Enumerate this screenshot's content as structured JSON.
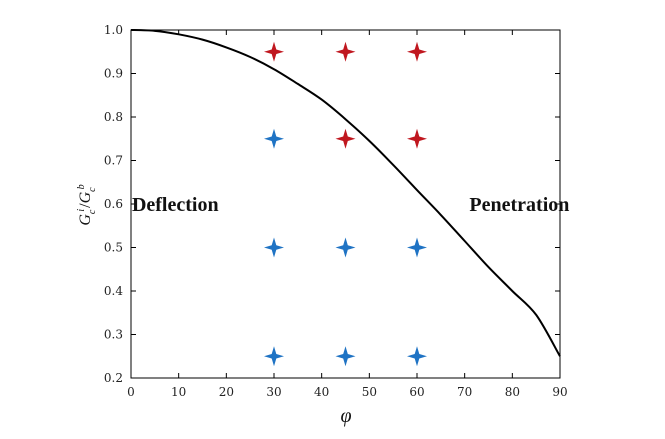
{
  "chart_data": {
    "type": "scatter",
    "title": "",
    "xlabel": "φ",
    "ylabel": {
      "main": "G",
      "sub1": "c",
      "sup1": "i",
      "slash": "/",
      "main2": "G",
      "sub2": "c",
      "sup2": "b"
    },
    "xlim": [
      0,
      90
    ],
    "ylim": [
      0.2,
      1.0
    ],
    "x_ticks": [
      0,
      10,
      20,
      30,
      40,
      50,
      60,
      70,
      80,
      90
    ],
    "y_ticks": [
      "0.2",
      "0.3",
      "0.4",
      "0.5",
      "0.6",
      "0.7",
      "0.8",
      "0.9",
      "1.0"
    ],
    "grid": false,
    "boundary_curve": {
      "name": "deflection-penetration boundary",
      "color": "#000000",
      "x": [
        0,
        5,
        10,
        15,
        20,
        25,
        30,
        35,
        40,
        45,
        50,
        55,
        60,
        65,
        70,
        75,
        80,
        85,
        90
      ],
      "y": [
        1.0,
        0.998,
        0.99,
        0.978,
        0.96,
        0.938,
        0.91,
        0.876,
        0.84,
        0.795,
        0.745,
        0.69,
        0.632,
        0.575,
        0.515,
        0.455,
        0.4,
        0.345,
        0.25
      ]
    },
    "series": [
      {
        "name": "penetration",
        "color": "#c0171f",
        "points": [
          {
            "x": 30,
            "y": 0.95
          },
          {
            "x": 45,
            "y": 0.95
          },
          {
            "x": 60,
            "y": 0.95
          },
          {
            "x": 45,
            "y": 0.75
          },
          {
            "x": 60,
            "y": 0.75
          }
        ]
      },
      {
        "name": "deflection",
        "color": "#1f73c4",
        "points": [
          {
            "x": 30,
            "y": 0.75
          },
          {
            "x": 30,
            "y": 0.5
          },
          {
            "x": 45,
            "y": 0.5
          },
          {
            "x": 60,
            "y": 0.5
          },
          {
            "x": 30,
            "y": 0.25
          },
          {
            "x": 45,
            "y": 0.25
          },
          {
            "x": 60,
            "y": 0.25
          }
        ]
      }
    ],
    "annotations": [
      {
        "text": "Deflection",
        "x": 0.2,
        "y": 0.6
      },
      {
        "text": "Penetration",
        "x": 71,
        "y": 0.6
      }
    ]
  }
}
